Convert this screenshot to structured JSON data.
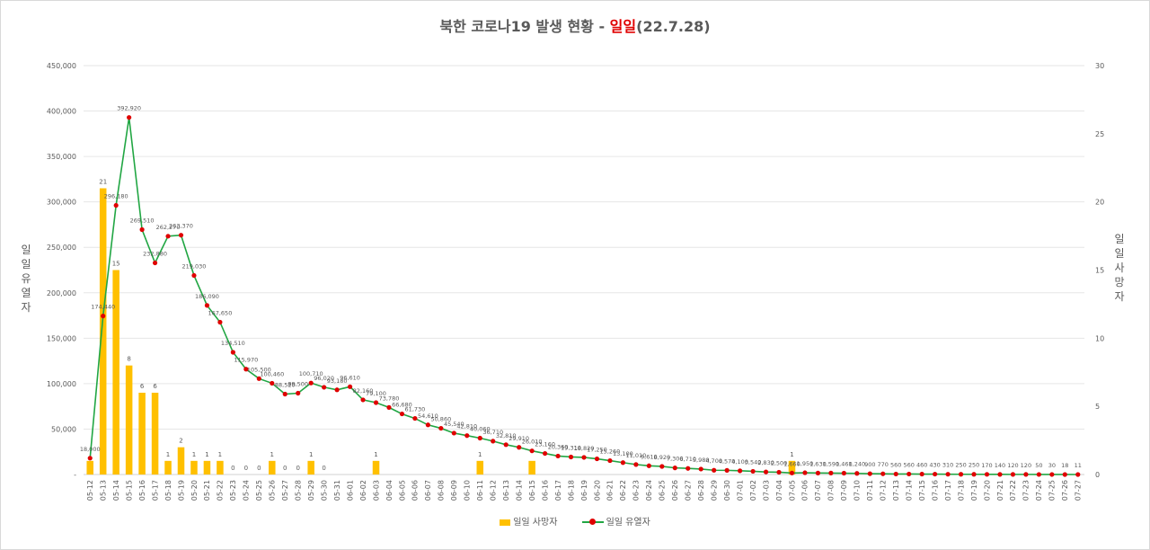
{
  "title": {
    "prefix": "북한 코로나19 발생 현황 - ",
    "highlight": "일일",
    "suffix": "(22.7.28)"
  },
  "colors": {
    "bar": "#ffc000",
    "line": "#21a643",
    "marker": "#e00000",
    "grid": "#e6e6e6",
    "text": "#595959"
  },
  "chart_data": {
    "type": "bar+line",
    "x_label_format": "MM-DD",
    "categories": [
      "05-12",
      "05-13",
      "05-14",
      "05-15",
      "05-16",
      "05-17",
      "05-18",
      "05-19",
      "05-20",
      "05-21",
      "05-22",
      "05-23",
      "05-24",
      "05-25",
      "05-26",
      "05-27",
      "05-28",
      "05-29",
      "05-30",
      "05-31",
      "06-01",
      "06-02",
      "06-03",
      "06-04",
      "06-05",
      "06-06",
      "06-07",
      "06-08",
      "06-09",
      "06-10",
      "06-11",
      "06-12",
      "06-13",
      "06-14",
      "06-15",
      "06-16",
      "06-17",
      "06-18",
      "06-19",
      "06-20",
      "06-21",
      "06-22",
      "06-23",
      "06-24",
      "06-25",
      "06-26",
      "06-27",
      "06-28",
      "06-29",
      "06-30",
      "07-01",
      "07-02",
      "07-03",
      "07-04",
      "07-05",
      "07-06",
      "07-07",
      "07-08",
      "07-09",
      "07-10",
      "07-11",
      "07-12",
      "07-13",
      "07-14",
      "07-15",
      "07-16",
      "07-17",
      "07-18",
      "07-19",
      "07-20",
      "07-21",
      "07-22",
      "07-23",
      "07-24",
      "07-25",
      "07-26",
      "07-27"
    ],
    "y_left": {
      "label": "일일 유열자",
      "min": 0,
      "max": 450000,
      "ticks": [
        "-",
        "50,000",
        "100,000",
        "150,000",
        "200,000",
        "250,000",
        "300,000",
        "350,000",
        "400,000",
        "450,000"
      ]
    },
    "y_right": {
      "label": "일일 사망자",
      "min": 0,
      "max": 30,
      "ticks": [
        "0",
        "5",
        "10",
        "15",
        "20",
        "25",
        "30"
      ]
    },
    "grid": true,
    "legend": "bottom",
    "series": [
      {
        "name": "일일 사망자",
        "type": "bar",
        "axis": "right",
        "values": [
          1,
          21,
          15,
          8,
          6,
          6,
          1,
          2,
          1,
          1,
          1,
          0,
          0,
          0,
          1,
          0,
          0,
          1,
          0,
          null,
          null,
          null,
          1,
          null,
          null,
          null,
          null,
          null,
          null,
          null,
          1,
          null,
          null,
          null,
          1,
          null,
          null,
          null,
          null,
          null,
          null,
          null,
          null,
          null,
          null,
          null,
          null,
          null,
          null,
          null,
          null,
          null,
          null,
          null,
          1,
          null,
          null,
          null,
          null,
          null,
          null,
          null,
          null,
          null,
          null,
          null,
          null,
          null,
          null,
          null,
          null,
          null,
          null,
          null,
          null,
          null,
          null
        ],
        "labels": [
          "",
          "21",
          "15",
          "8",
          "6",
          "6",
          "1",
          "2",
          "1",
          "1",
          "1",
          "0",
          "0",
          "0",
          "1",
          "0",
          "0",
          "1",
          "0",
          "",
          "",
          "",
          "1",
          "",
          "",
          "",
          "",
          "",
          "",
          "",
          "1",
          "",
          "",
          "",
          "",
          "",
          "",
          "",
          "",
          "",
          "",
          "",
          "",
          "",
          "",
          "",
          "",
          "",
          "",
          "",
          "",
          "",
          "",
          "",
          "1",
          "",
          "",
          "",
          "",
          "",
          "",
          "",
          "",
          "",
          "",
          "",
          "",
          "",
          "",
          "",
          "",
          "",
          "",
          "",
          "",
          "",
          ""
        ]
      },
      {
        "name": "일일 유열자",
        "type": "line",
        "axis": "left",
        "values": [
          18000,
          174440,
          296180,
          392920,
          269510,
          232880,
          262270,
          263370,
          219030,
          186090,
          167650,
          134510,
          115970,
          105500,
          100460,
          88520,
          89500,
          100710,
          96020,
          93180,
          96610,
          82160,
          79100,
          73780,
          66680,
          61730,
          54610,
          50860,
          45540,
          42810,
          40060,
          36710,
          32810,
          29910,
          26010,
          23160,
          20360,
          19310,
          18820,
          17250,
          15260,
          13100,
          11010,
          9610,
          8920,
          7300,
          6710,
          5980,
          4700,
          4570,
          4100,
          3540,
          2830,
          2500,
          1660,
          1950,
          1630,
          1590,
          1460,
          1240,
          900,
          770,
          560,
          560,
          460,
          430,
          310,
          250,
          250,
          170,
          140,
          120,
          120,
          50,
          30,
          18,
          11
        ],
        "labels": [
          "18,000",
          "174,440",
          "296,180",
          "392,920",
          "269,510",
          "232,880",
          "262,270",
          "263,370",
          "219,030",
          "186,090",
          "167,650",
          "134,510",
          "115,970",
          "105,500",
          "100,460",
          "88,520",
          "89,500",
          "100,710",
          "96,020",
          "93,180",
          "96,610",
          "82,160",
          "79,100",
          "73,780",
          "66,680",
          "61,730",
          "54,610",
          "50,860",
          "45,540",
          "42,810",
          "40,060",
          "36,710",
          "32,810",
          "29,910",
          "26,010",
          "23,160",
          "20,360",
          "19,310",
          "18,820",
          "17,250",
          "15,260",
          "13,100",
          "11,010",
          "9,610",
          "8,920",
          "7,300",
          "6,710",
          "5,980",
          "4,700",
          "4,570",
          "4,100",
          "3,540",
          "2,830",
          "2,500",
          "1,660",
          "1,950",
          "1,630",
          "1,590",
          "1,460",
          "1,240",
          "900",
          "770",
          "560",
          "560",
          "460",
          "430",
          "310",
          "250",
          "250",
          "170",
          "140",
          "120",
          "120",
          "50",
          "30",
          "18",
          "11"
        ]
      }
    ]
  }
}
